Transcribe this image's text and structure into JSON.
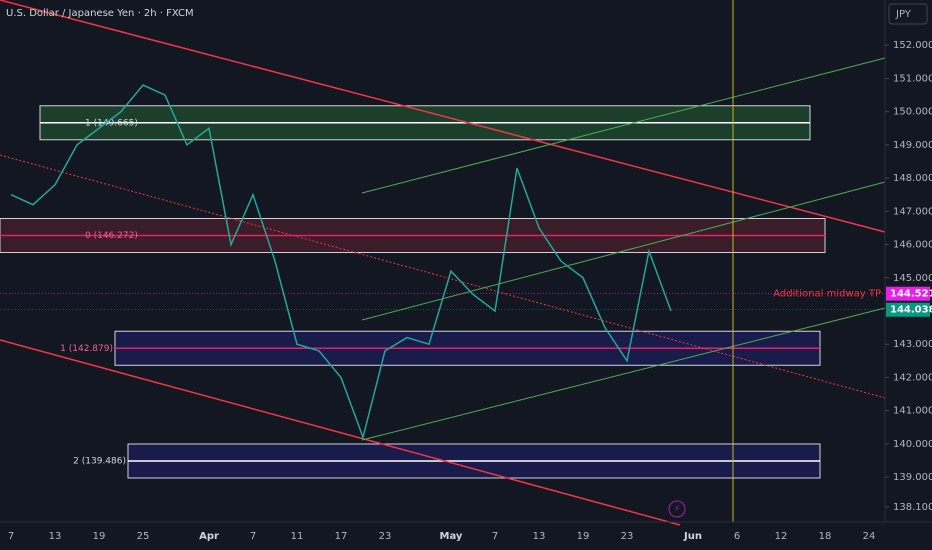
{
  "chart_data": {
    "type": "line",
    "title": "U.S. Dollar / Japanese Yen · 2h · FXCM",
    "currency": "JPY",
    "categories": [
      "7",
      null,
      "13",
      null,
      "19",
      null,
      "25",
      null,
      null,
      "Apr",
      null,
      "7",
      null,
      "11",
      null,
      "17",
      null,
      "23",
      null,
      null,
      "May",
      null,
      "7",
      null,
      "13",
      null,
      "19",
      null,
      "23",
      null,
      null,
      "Jun",
      null,
      "6",
      null,
      "12",
      null,
      "18",
      null,
      "24"
    ],
    "series": [
      {
        "name": "USDJPY",
        "color": "#26a69a",
        "values": [
          147.5,
          147.2,
          147.8,
          149.0,
          149.5,
          150.0,
          150.8,
          150.5,
          149.0,
          149.5,
          146.0,
          147.5,
          145.5,
          143.0,
          142.8,
          142.0,
          140.2,
          142.8,
          143.2,
          143.0,
          145.2,
          144.5,
          144.0,
          148.3,
          146.5,
          145.5,
          145.0,
          143.5,
          142.5,
          145.8,
          144.0,
          null,
          null,
          null,
          null,
          null,
          null,
          null,
          null,
          null
        ]
      }
    ],
    "ylim": [
      137.65,
      153.36
    ],
    "yticks": [
      {
        "value": 152,
        "label": "152.000"
      },
      {
        "value": 151,
        "label": "151.000"
      },
      {
        "value": 150,
        "label": "150.000"
      },
      {
        "value": 149,
        "label": "149.000"
      },
      {
        "value": 148,
        "label": "148.000"
      },
      {
        "value": 147,
        "label": "147.000"
      },
      {
        "value": 146,
        "label": "146.000"
      },
      {
        "value": 145,
        "label": "145.000"
      },
      {
        "value": 143,
        "label": "143.000"
      },
      {
        "value": 142,
        "label": "142.000"
      },
      {
        "value": 141,
        "label": "141.000"
      },
      {
        "value": 140,
        "label": "140.000"
      },
      {
        "value": 139,
        "label": "139.000"
      },
      {
        "value": 138.1,
        "label": "138.100"
      }
    ],
    "levels": [
      {
        "label": "1 (149.665)",
        "value": 149.665,
        "color": "#ffffff",
        "zone": "#1f4d2e",
        "x0": 40,
        "x1": 810
      },
      {
        "label": "0 (146.272)",
        "value": 146.272,
        "color": "#e91e63",
        "zone": "#4a1f2c",
        "x0": 0,
        "x1": 825
      },
      {
        "label": "1 (142.879)",
        "value": 142.879,
        "color": "#e91e63",
        "zone": "#1c1f5a",
        "x0": 115,
        "x1": 820
      },
      {
        "label": "2 (139.486)",
        "value": 139.486,
        "color": "#ffffff",
        "zone": "#1c1f5a",
        "x0": 128,
        "x1": 820
      }
    ],
    "annotation": "Additional midway TP",
    "price_badges": [
      {
        "label": "144.521",
        "value": 144.521,
        "color": "#e91ee8"
      },
      {
        "label": "144.038",
        "value": 144.038,
        "color": "#089981"
      }
    ]
  }
}
